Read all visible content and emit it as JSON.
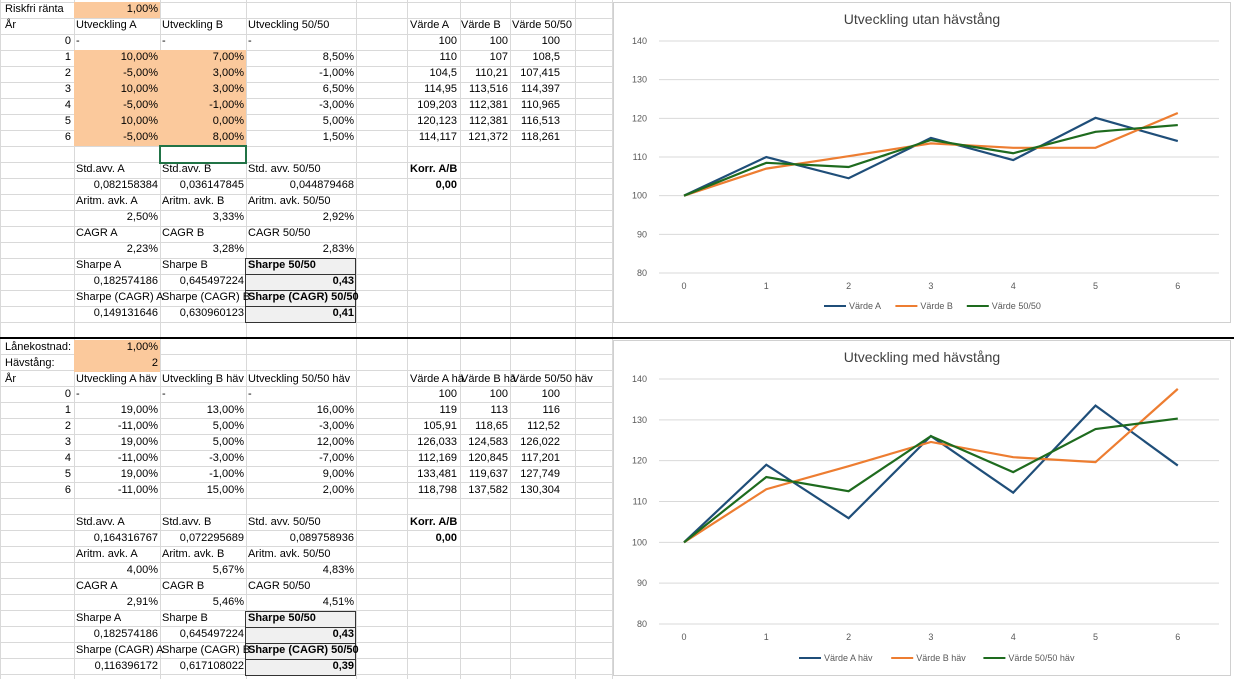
{
  "top": {
    "risk_label": "Riskfri ränta",
    "risk_value": "1,00%",
    "headers": [
      "År",
      "Utveckling A",
      "Utveckling B",
      "Utveckling 50/50",
      "Värde A",
      "Värde B",
      "Värde 50/50"
    ],
    "rows": [
      [
        "0",
        "-",
        "-",
        "-",
        "100",
        "100",
        "100"
      ],
      [
        "1",
        "10,00%",
        "7,00%",
        "8,50%",
        "110",
        "107",
        "108,5"
      ],
      [
        "2",
        "-5,00%",
        "3,00%",
        "-1,00%",
        "104,5",
        "110,21",
        "107,415"
      ],
      [
        "3",
        "10,00%",
        "3,00%",
        "6,50%",
        "114,95",
        "113,516",
        "114,397"
      ],
      [
        "4",
        "-5,00%",
        "-1,00%",
        "-3,00%",
        "109,203",
        "112,381",
        "110,965"
      ],
      [
        "5",
        "10,00%",
        "0,00%",
        "5,00%",
        "120,123",
        "112,381",
        "116,513"
      ],
      [
        "6",
        "-5,00%",
        "8,00%",
        "1,50%",
        "114,117",
        "121,372",
        "118,261"
      ]
    ],
    "stats": {
      "std_a_label": "Std.avv. A",
      "std_b_label": "Std.avv. B",
      "std_ab_label": "Std. avv. 50/50",
      "std_a": "0,082158384",
      "std_b": "0,036147845",
      "std_ab": "0,044879468",
      "korr_label": "Korr. A/B",
      "korr": "0,00",
      "aritm_a_label": "Aritm. avk. A",
      "aritm_b_label": "Aritm. avk. B",
      "aritm_ab_label": "Aritm. avk. 50/50",
      "aritm_a": "2,50%",
      "aritm_b": "3,33%",
      "aritm_ab": "2,92%",
      "cagr_a_label": "CAGR A",
      "cagr_b_label": "CAGR B",
      "cagr_ab_label": "CAGR 50/50",
      "cagr_a": "2,23%",
      "cagr_b": "3,28%",
      "cagr_ab": "2,83%",
      "sharpe_a_label": "Sharpe A",
      "sharpe_b_label": "Sharpe B",
      "sharpe_ab_label": "Sharpe 50/50",
      "sharpe_a": "0,182574186",
      "sharpe_b": "0,645497224",
      "sharpe_ab": "0,43",
      "sharpec_a_label": "Sharpe (CAGR) A",
      "sharpec_b_label": "Sharpe (CAGR) B",
      "sharpec_ab_label": "Sharpe (CAGR) 50/50",
      "sharpec_a": "0,149131646",
      "sharpec_b": "0,630960123",
      "sharpec_ab": "0,41"
    }
  },
  "bottom": {
    "loan_label": "Lånekostnad:",
    "loan_value": "1,00%",
    "lev_label": "Hävstång:",
    "lev_value": "2",
    "headers": [
      "År",
      "Utveckling A häv",
      "Utveckling B häv",
      "Utveckling 50/50 häv",
      "Värde A hä",
      "Värde B hä",
      "Värde 50/50 häv"
    ],
    "rows": [
      [
        "0",
        "-",
        "-",
        "-",
        "100",
        "100",
        "100"
      ],
      [
        "1",
        "19,00%",
        "13,00%",
        "16,00%",
        "119",
        "113",
        "116"
      ],
      [
        "2",
        "-11,00%",
        "5,00%",
        "-3,00%",
        "105,91",
        "118,65",
        "112,52"
      ],
      [
        "3",
        "19,00%",
        "5,00%",
        "12,00%",
        "126,033",
        "124,583",
        "126,022"
      ],
      [
        "4",
        "-11,00%",
        "-3,00%",
        "-7,00%",
        "112,169",
        "120,845",
        "117,201"
      ],
      [
        "5",
        "19,00%",
        "-1,00%",
        "9,00%",
        "133,481",
        "119,637",
        "127,749"
      ],
      [
        "6",
        "-11,00%",
        "15,00%",
        "2,00%",
        "118,798",
        "137,582",
        "130,304"
      ]
    ],
    "stats": {
      "std_a_label": "Std.avv. A",
      "std_b_label": "Std.avv. B",
      "std_ab_label": "Std. avv. 50/50",
      "std_a": "0,164316767",
      "std_b": "0,072295689",
      "std_ab": "0,089758936",
      "korr_label": "Korr. A/B",
      "korr": "0,00",
      "aritm_a_label": "Aritm. avk. A",
      "aritm_b_label": "Aritm. avk. B",
      "aritm_ab_label": "Aritm. avk. 50/50",
      "aritm_a": "4,00%",
      "aritm_b": "5,67%",
      "aritm_ab": "4,83%",
      "cagr_a_label": "CAGR A",
      "cagr_b_label": "CAGR B",
      "cagr_ab_label": "CAGR 50/50",
      "cagr_a": "2,91%",
      "cagr_b": "5,46%",
      "cagr_ab": "4,51%",
      "sharpe_a_label": "Sharpe A",
      "sharpe_b_label": "Sharpe B",
      "sharpe_ab_label": "Sharpe 50/50",
      "sharpe_a": "0,182574186",
      "sharpe_b": "0,645497224",
      "sharpe_ab": "0,43",
      "sharpec_a_label": "Sharpe (CAGR) A",
      "sharpec_b_label": "Sharpe (CAGR) B",
      "sharpec_ab_label": "Sharpe (CAGR) 50/50",
      "sharpec_a": "0,116396172",
      "sharpec_b": "0,617108022",
      "sharpec_ab": "0,39"
    }
  },
  "colors": {
    "series_a": "#1f4e79",
    "series_b": "#ed7d31",
    "series_ab": "#1e6b1e",
    "input_fill": "#fbc99c"
  },
  "chart_data": [
    {
      "type": "line",
      "title": "Utveckling utan hävstång",
      "x": [
        0,
        1,
        2,
        3,
        4,
        5,
        6
      ],
      "ylim": [
        80,
        140
      ],
      "yticks": [
        80,
        90,
        100,
        110,
        120,
        130,
        140
      ],
      "grid": true,
      "legend": "bottom",
      "series": [
        {
          "name": "Värde A",
          "values": [
            100,
            110,
            104.5,
            114.95,
            109.203,
            120.123,
            114.117
          ]
        },
        {
          "name": "Värde B",
          "values": [
            100,
            107,
            110.21,
            113.516,
            112.381,
            112.381,
            121.372
          ]
        },
        {
          "name": "Värde 50/50",
          "values": [
            100,
            108.5,
            107.415,
            114.397,
            110.965,
            116.513,
            118.261
          ]
        }
      ]
    },
    {
      "type": "line",
      "title": "Utveckling med hävstång",
      "x": [
        0,
        1,
        2,
        3,
        4,
        5,
        6
      ],
      "ylim": [
        80,
        140
      ],
      "yticks": [
        80,
        90,
        100,
        110,
        120,
        130,
        140
      ],
      "grid": true,
      "legend": "bottom",
      "series": [
        {
          "name": "Värde A häv",
          "values": [
            100,
            119,
            105.91,
            126.033,
            112.169,
            133.481,
            118.798
          ]
        },
        {
          "name": "Värde B häv",
          "values": [
            100,
            113,
            118.65,
            124.583,
            120.845,
            119.637,
            137.582
          ]
        },
        {
          "name": "Värde 50/50 häv",
          "values": [
            100,
            116,
            112.52,
            126.022,
            117.201,
            127.749,
            130.304
          ]
        }
      ]
    }
  ]
}
